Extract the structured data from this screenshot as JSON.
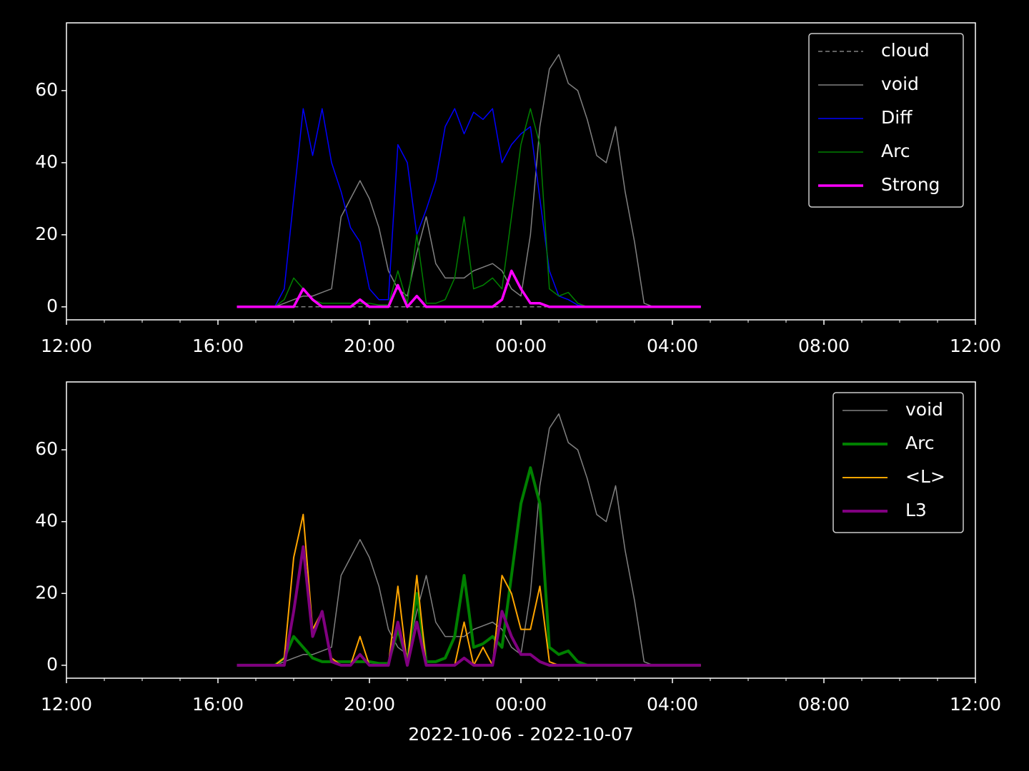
{
  "chart_data": [
    {
      "type": "line",
      "legend": "upper right",
      "xlim": [
        12,
        36
      ],
      "ylim": [
        -3.6,
        78.8
      ],
      "xticks": [
        {
          "value": 12,
          "label": "12:00"
        },
        {
          "value": 16,
          "label": "16:00"
        },
        {
          "value": 20,
          "label": "20:00"
        },
        {
          "value": 24,
          "label": "00:00"
        },
        {
          "value": 28,
          "label": "04:00"
        },
        {
          "value": 32,
          "label": "08:00"
        },
        {
          "value": 36,
          "label": "12:00"
        }
      ],
      "xminorticks": [
        13,
        14,
        15,
        17,
        18,
        19,
        21,
        22,
        23,
        25,
        26,
        27,
        29,
        30,
        31,
        33,
        34,
        35
      ],
      "yticks": [
        0,
        20,
        40,
        60
      ],
      "x": [
        16.5,
        16.75,
        17,
        17.25,
        17.5,
        17.75,
        18,
        18.25,
        18.5,
        18.75,
        19,
        19.25,
        19.5,
        19.75,
        20,
        20.25,
        20.5,
        20.75,
        21,
        21.25,
        21.5,
        21.75,
        22,
        22.25,
        22.5,
        22.75,
        23,
        23.25,
        23.5,
        23.75,
        24,
        24.25,
        24.5,
        24.75,
        25,
        25.25,
        25.5,
        25.75,
        26,
        26.25,
        26.5,
        26.75,
        27,
        27.25,
        27.5,
        27.75,
        28,
        28.25,
        28.5,
        28.75
      ],
      "series": [
        {
          "name": "cloud",
          "color": "#808080",
          "linestyle": "dashed",
          "linewidth": 1.5,
          "values": [
            0,
            0,
            0,
            0,
            0,
            0,
            0,
            0,
            0,
            0,
            0,
            0,
            0,
            0,
            0,
            0,
            0,
            0,
            0,
            0,
            0,
            0,
            0,
            0,
            0,
            0,
            0,
            0,
            0,
            0,
            0,
            0,
            0,
            0,
            0,
            0,
            0,
            0,
            0,
            0,
            0,
            0,
            0,
            0,
            0,
            0,
            0,
            0,
            0,
            0
          ]
        },
        {
          "name": "void",
          "color": "#808080",
          "linewidth": 1.5,
          "values": [
            0,
            0,
            0,
            0,
            0,
            1,
            2,
            3,
            3,
            4,
            5,
            25,
            30,
            35,
            30,
            22,
            10,
            5,
            3,
            15,
            25,
            12,
            8,
            8,
            8,
            10,
            11,
            12,
            10,
            5,
            3,
            20,
            50,
            66,
            70,
            62,
            60,
            52,
            42,
            40,
            50,
            32,
            18,
            1,
            0,
            0,
            0,
            0,
            0,
            0
          ]
        },
        {
          "name": "Diff",
          "color": "#0000ff",
          "linewidth": 1.5,
          "values": [
            0,
            0,
            0,
            0,
            0,
            5,
            30,
            55,
            42,
            55,
            40,
            32,
            22,
            18,
            5,
            2,
            2,
            45,
            40,
            20,
            27,
            35,
            50,
            55,
            48,
            54,
            52,
            55,
            40,
            45,
            48,
            50,
            30,
            10,
            3,
            2,
            0.5,
            0,
            0,
            0,
            0,
            0,
            0,
            0,
            0,
            0,
            0,
            0,
            0,
            0
          ]
        },
        {
          "name": "Arc",
          "color": "#008000",
          "linewidth": 1.5,
          "values": [
            0,
            0,
            0,
            0,
            0,
            2,
            8,
            5,
            2,
            1,
            1,
            1,
            1,
            1,
            1,
            0.5,
            0.5,
            10,
            1,
            20,
            1,
            1,
            2,
            8,
            25,
            5,
            6,
            8,
            5,
            25,
            45,
            55,
            45,
            5,
            3,
            4,
            1,
            0,
            0,
            0,
            0,
            0,
            0,
            0,
            0,
            0,
            0,
            0,
            0,
            0
          ]
        },
        {
          "name": "Strong",
          "color": "#ff00ff",
          "linewidth": 3.5,
          "values": [
            0,
            0,
            0,
            0,
            0,
            0,
            0,
            5,
            2,
            0,
            0,
            0,
            0,
            2,
            0,
            0,
            0,
            6,
            0,
            3,
            0,
            0,
            0,
            0,
            0,
            0,
            0,
            0,
            2,
            10,
            5,
            1,
            1,
            0,
            0,
            0,
            0,
            0,
            0,
            0,
            0,
            0,
            0,
            0,
            0,
            0,
            0,
            0,
            0,
            0
          ]
        }
      ]
    },
    {
      "type": "line",
      "legend": "upper right",
      "xlabel": "2022-10-06 - 2022-10-07",
      "xlim": [
        12,
        36
      ],
      "ylim": [
        -3.6,
        78.9
      ],
      "xticks": [
        {
          "value": 12,
          "label": "12:00"
        },
        {
          "value": 16,
          "label": "16:00"
        },
        {
          "value": 20,
          "label": "20:00"
        },
        {
          "value": 24,
          "label": "00:00"
        },
        {
          "value": 28,
          "label": "04:00"
        },
        {
          "value": 32,
          "label": "08:00"
        },
        {
          "value": 36,
          "label": "12:00"
        }
      ],
      "xminorticks": [
        13,
        14,
        15,
        17,
        18,
        19,
        21,
        22,
        23,
        25,
        26,
        27,
        29,
        30,
        31,
        33,
        34,
        35
      ],
      "yticks": [
        0,
        20,
        40,
        60
      ],
      "x": [
        16.5,
        16.75,
        17,
        17.25,
        17.5,
        17.75,
        18,
        18.25,
        18.5,
        18.75,
        19,
        19.25,
        19.5,
        19.75,
        20,
        20.25,
        20.5,
        20.75,
        21,
        21.25,
        21.5,
        21.75,
        22,
        22.25,
        22.5,
        22.75,
        23,
        23.25,
        23.5,
        23.75,
        24,
        24.25,
        24.5,
        24.75,
        25,
        25.25,
        25.5,
        25.75,
        26,
        26.25,
        26.5,
        26.75,
        27,
        27.25,
        27.5,
        27.75,
        28,
        28.25,
        28.5,
        28.75
      ],
      "series": [
        {
          "name": "void",
          "color": "#808080",
          "linewidth": 1.5,
          "values": [
            0,
            0,
            0,
            0,
            0,
            1,
            2,
            3,
            3,
            4,
            5,
            25,
            30,
            35,
            30,
            22,
            10,
            5,
            3,
            15,
            25,
            12,
            8,
            8,
            8,
            10,
            11,
            12,
            10,
            5,
            3,
            20,
            50,
            66,
            70,
            62,
            60,
            52,
            42,
            40,
            50,
            32,
            18,
            1,
            0,
            0,
            0,
            0,
            0,
            0
          ]
        },
        {
          "name": "Arc",
          "color": "#008000",
          "linewidth": 4,
          "values": [
            0,
            0,
            0,
            0,
            0,
            2,
            8,
            5,
            2,
            1,
            1,
            1,
            1,
            1,
            1,
            0.5,
            0.5,
            10,
            1,
            20,
            1,
            1,
            2,
            8,
            25,
            5,
            6,
            8,
            5,
            25,
            45,
            55,
            45,
            5,
            3,
            4,
            1,
            0,
            0,
            0,
            0,
            0,
            0,
            0,
            0,
            0,
            0,
            0,
            0,
            0
          ]
        },
        {
          "name": "<L>",
          "color": "#ffa500",
          "linewidth": 2,
          "values": [
            0,
            0,
            0,
            0,
            0,
            2,
            30,
            42,
            10,
            15,
            2,
            0,
            0,
            8,
            0,
            0,
            0,
            22,
            0,
            25,
            0,
            0,
            0,
            0,
            12,
            0,
            5,
            0,
            25,
            20,
            10,
            10,
            22,
            1,
            0,
            0,
            0,
            0,
            0,
            0,
            0,
            0,
            0,
            0,
            0,
            0,
            0,
            0,
            0,
            0
          ]
        },
        {
          "name": "L3",
          "color": "#800080",
          "linewidth": 4,
          "values": [
            0,
            0,
            0,
            0,
            0,
            0,
            15,
            33,
            8,
            15,
            1,
            0,
            0,
            3,
            0,
            0,
            0,
            12,
            0,
            12,
            0,
            0,
            0,
            0,
            2,
            0,
            0,
            0,
            15,
            8,
            3,
            3,
            1,
            0,
            0,
            0,
            0,
            0,
            0,
            0,
            0,
            0,
            0,
            0,
            0,
            0,
            0,
            0,
            0,
            0
          ]
        }
      ]
    }
  ]
}
